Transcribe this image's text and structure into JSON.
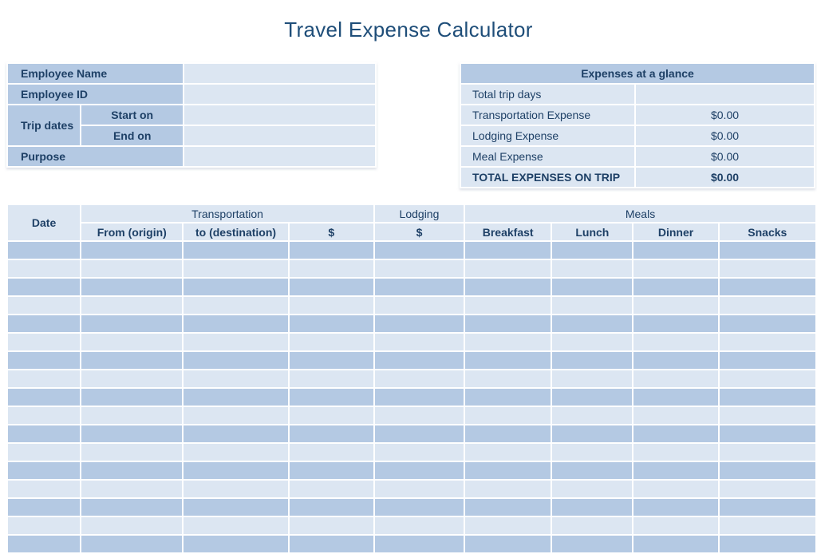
{
  "title": "Travel Expense Calculator",
  "colors": {
    "accent_medium_blue": "#b4c9e3",
    "accent_light_blue": "#dce6f2",
    "text_dark_blue": "#1e4066",
    "title_blue": "#1f4e79",
    "background": "#ffffff"
  },
  "employee_form": {
    "employee_name_label": "Employee Name",
    "employee_name_value": "",
    "employee_id_label": "Employee ID",
    "employee_id_value": "",
    "trip_dates_label": "Trip dates",
    "start_on_label": "Start on",
    "start_on_value": "",
    "end_on_label": "End on",
    "end_on_value": "",
    "purpose_label": "Purpose",
    "purpose_value": ""
  },
  "glance": {
    "header": "Expenses at a glance",
    "rows": [
      {
        "label": "Total trip days",
        "value": ""
      },
      {
        "label": "Transportation Expense",
        "value": "$0.00"
      },
      {
        "label": "Lodging Expense",
        "value": "$0.00"
      },
      {
        "label": "Meal Expense",
        "value": "$0.00"
      },
      {
        "label": "TOTAL EXPENSES ON TRIP",
        "value": "$0.00"
      }
    ]
  },
  "expense_table": {
    "date_header": "Date",
    "group_transportation": "Transportation",
    "group_lodging": "Lodging",
    "group_meals": "Meals",
    "col_from": "From (origin)",
    "col_to": "to (destination)",
    "col_transportation_amount": "$",
    "col_lodging_amount": "$",
    "col_breakfast": "Breakfast",
    "col_lunch": "Lunch",
    "col_dinner": "Dinner",
    "col_snacks": "Snacks",
    "body_row_count": 17,
    "column_count": 9
  }
}
